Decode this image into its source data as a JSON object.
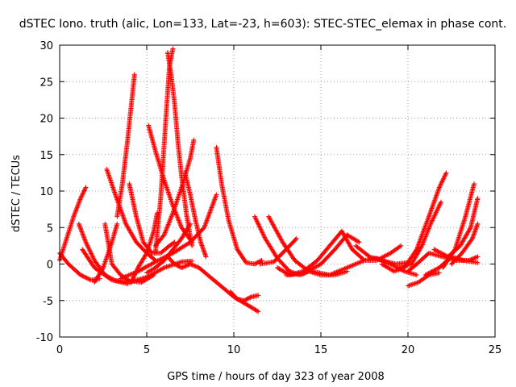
{
  "chart_data": {
    "type": "scatter",
    "title": "dSTEC Iono. truth (alic, Lon=133, Lat=-23, h=603): STEC-STEC_elemax in phase cont.",
    "xlabel": "GPS time / hours of day 323 of year 2008",
    "ylabel": "dSTEC  / TECUs",
    "xlim": [
      0,
      25
    ],
    "ylim": [
      -10,
      30
    ],
    "xticks": [
      0,
      5,
      10,
      15,
      20,
      25
    ],
    "yticks": [
      -10,
      -5,
      0,
      5,
      10,
      15,
      20,
      25,
      30
    ],
    "grid": true,
    "marker": "+",
    "color": "#ff0000",
    "series": [
      {
        "x": [
          0.0,
          0.4,
          0.8,
          1.2,
          1.5
        ],
        "y": [
          0.5,
          3.5,
          6.5,
          9.0,
          10.5
        ]
      },
      {
        "x": [
          0.0,
          0.5,
          1.2,
          1.8,
          2.3
        ],
        "y": [
          1.5,
          0.0,
          -1.5,
          -2.2,
          -2.0
        ]
      },
      {
        "x": [
          1.1,
          1.5,
          2.0,
          2.6,
          3.2,
          3.9
        ],
        "y": [
          5.5,
          3.0,
          0.5,
          -1.5,
          -2.3,
          -2.7
        ]
      },
      {
        "x": [
          1.3,
          2.0,
          3.0,
          4.0,
          5.0,
          6.0,
          7.0,
          7.6
        ],
        "y": [
          2.0,
          -0.5,
          -2.2,
          -2.5,
          -1.8,
          -0.5,
          0.3,
          0.4
        ]
      },
      {
        "x": [
          2.0,
          2.5,
          3.0,
          3.3
        ],
        "y": [
          -2.5,
          -0.5,
          3.0,
          5.5
        ]
      },
      {
        "x": [
          2.6,
          3.0,
          3.5,
          4.0,
          4.7,
          5.4
        ],
        "y": [
          5.5,
          0.0,
          -1.5,
          -2.3,
          -2.5,
          -1.5
        ]
      },
      {
        "x": [
          2.7,
          3.2,
          3.8,
          4.4,
          5.0,
          5.5
        ],
        "y": [
          13.0,
          9.5,
          5.5,
          3.0,
          1.5,
          0.5
        ]
      },
      {
        "x": [
          3.3,
          3.6,
          3.9,
          4.1,
          4.3
        ],
        "y": [
          6.5,
          11.0,
          17.0,
          21.5,
          26.0
        ]
      },
      {
        "x": [
          3.5,
          4.5,
          5.5,
          6.5,
          7.5,
          8.3,
          9.0
        ],
        "y": [
          -2.0,
          -1.0,
          0.3,
          1.5,
          3.0,
          5.0,
          9.5
        ]
      },
      {
        "x": [
          4.0,
          4.4,
          4.8,
          5.3,
          5.8,
          6.3,
          6.6
        ],
        "y": [
          11.0,
          6.5,
          3.0,
          1.5,
          1.5,
          2.5,
          3.0
        ]
      },
      {
        "x": [
          4.1,
          4.5,
          5.0,
          5.4,
          5.6
        ],
        "y": [
          -2.5,
          -0.5,
          1.5,
          4.5,
          7.0
        ]
      },
      {
        "x": [
          5.0,
          5.5,
          6.0,
          6.5,
          7.0,
          7.5
        ],
        "y": [
          -1.2,
          -0.5,
          0.5,
          2.0,
          3.5,
          5.5
        ]
      },
      {
        "x": [
          5.1,
          5.5,
          6.0,
          6.5,
          7.0,
          7.6
        ],
        "y": [
          19.0,
          15.5,
          11.5,
          8.0,
          5.0,
          3.0
        ]
      },
      {
        "x": [
          5.5,
          5.8,
          6.1,
          6.3,
          6.5
        ],
        "y": [
          1.5,
          9.0,
          20.0,
          27.0,
          29.5
        ]
      },
      {
        "x": [
          6.2,
          6.4,
          6.6,
          6.8,
          7.0,
          7.3,
          7.6
        ],
        "y": [
          29.0,
          26.0,
          22.0,
          16.5,
          12.0,
          6.5,
          2.5
        ]
      },
      {
        "x": [
          5.5,
          6.0,
          6.5,
          7.0,
          7.5,
          7.7
        ],
        "y": [
          2.5,
          4.0,
          7.0,
          10.5,
          14.5,
          17.0
        ]
      },
      {
        "x": [
          6.2,
          6.6,
          7.0,
          7.5,
          8.0,
          8.5,
          9.0,
          9.5,
          10.0,
          10.7,
          11.4
        ],
        "y": [
          1.0,
          0.0,
          -0.5,
          0.0,
          -0.5,
          -1.5,
          -2.5,
          -3.5,
          -4.5,
          -5.5,
          -6.5
        ]
      },
      {
        "x": [
          7.2,
          7.5,
          7.8,
          8.1,
          8.4
        ],
        "y": [
          12.5,
          9.5,
          6.0,
          3.0,
          1.0
        ]
      },
      {
        "x": [
          9.0,
          9.3,
          9.7,
          10.2,
          10.7,
          11.2,
          11.6
        ],
        "y": [
          16.0,
          11.0,
          6.0,
          2.0,
          0.2,
          0.0,
          0.5
        ]
      },
      {
        "x": [
          9.8,
          10.2,
          10.6,
          11.0,
          11.4
        ],
        "y": [
          -3.8,
          -4.8,
          -5.0,
          -4.5,
          -4.3
        ]
      },
      {
        "x": [
          11.2,
          11.8,
          12.5,
          13.2,
          13.8,
          14.3
        ],
        "y": [
          6.5,
          3.5,
          0.8,
          -1.0,
          -1.5,
          -1.0
        ]
      },
      {
        "x": [
          11.5,
          12.3,
          13.0,
          13.6
        ],
        "y": [
          0.0,
          0.3,
          2.0,
          3.5
        ]
      },
      {
        "x": [
          12.0,
          12.8,
          13.5,
          14.3,
          15.0,
          15.8,
          16.5
        ],
        "y": [
          6.5,
          3.0,
          0.5,
          -1.0,
          -1.5,
          -1.5,
          -1.0
        ]
      },
      {
        "x": [
          12.5,
          13.2,
          14.0,
          14.8,
          15.5,
          16.2
        ],
        "y": [
          -0.5,
          -1.5,
          -1.0,
          0.5,
          2.5,
          4.5
        ]
      },
      {
        "x": [
          13.0,
          14.0,
          15.0,
          15.8,
          16.5,
          17.2
        ],
        "y": [
          -1.5,
          -1.3,
          0.0,
          2.0,
          4.0,
          3.0
        ]
      },
      {
        "x": [
          16.2,
          16.8,
          17.5,
          18.2,
          19.0,
          19.6
        ],
        "y": [
          4.5,
          2.0,
          0.5,
          0.5,
          1.5,
          2.5
        ]
      },
      {
        "x": [
          14.5,
          15.5,
          16.5,
          17.5
        ],
        "y": [
          -1.0,
          -1.5,
          -0.5,
          0.5
        ]
      },
      {
        "x": [
          17.0,
          17.8,
          18.5,
          19.3,
          20.0
        ],
        "y": [
          2.5,
          1.0,
          0.5,
          0.0,
          0.2
        ]
      },
      {
        "x": [
          17.5,
          18.2,
          19.0,
          19.8,
          20.5
        ],
        "y": [
          0.5,
          0.8,
          0.0,
          -1.0,
          -1.5
        ]
      },
      {
        "x": [
          18.5,
          19.2,
          19.8,
          20.5,
          21.2,
          21.8,
          22.2
        ],
        "y": [
          0.0,
          -1.0,
          -0.5,
          2.0,
          6.5,
          10.5,
          12.5
        ]
      },
      {
        "x": [
          19.5,
          20.2,
          20.8,
          21.3,
          21.9
        ],
        "y": [
          -0.5,
          0.0,
          2.5,
          5.5,
          8.5
        ]
      },
      {
        "x": [
          20.0,
          20.5,
          21.2,
          22.0,
          22.8,
          23.5,
          24.0
        ],
        "y": [
          -1.0,
          0.0,
          1.5,
          1.0,
          0.5,
          0.5,
          1.0
        ]
      },
      {
        "x": [
          20.0,
          20.6,
          21.2,
          21.8
        ],
        "y": [
          -3.0,
          -2.5,
          -1.5,
          -1.2
        ]
      },
      {
        "x": [
          21.0,
          21.8,
          22.5,
          23.2,
          24.0
        ],
        "y": [
          -1.5,
          -0.5,
          1.0,
          0.5,
          0.2
        ]
      },
      {
        "x": [
          21.5,
          22.3,
          23.0,
          23.6,
          24.0
        ],
        "y": [
          2.0,
          1.0,
          2.5,
          5.0,
          9.0
        ]
      },
      {
        "x": [
          22.0,
          22.7,
          23.3,
          23.8
        ],
        "y": [
          -0.5,
          2.0,
          6.5,
          11.0
        ]
      },
      {
        "x": [
          22.5,
          23.1,
          23.7,
          24.0
        ],
        "y": [
          0.0,
          1.5,
          3.5,
          5.5
        ]
      }
    ]
  }
}
